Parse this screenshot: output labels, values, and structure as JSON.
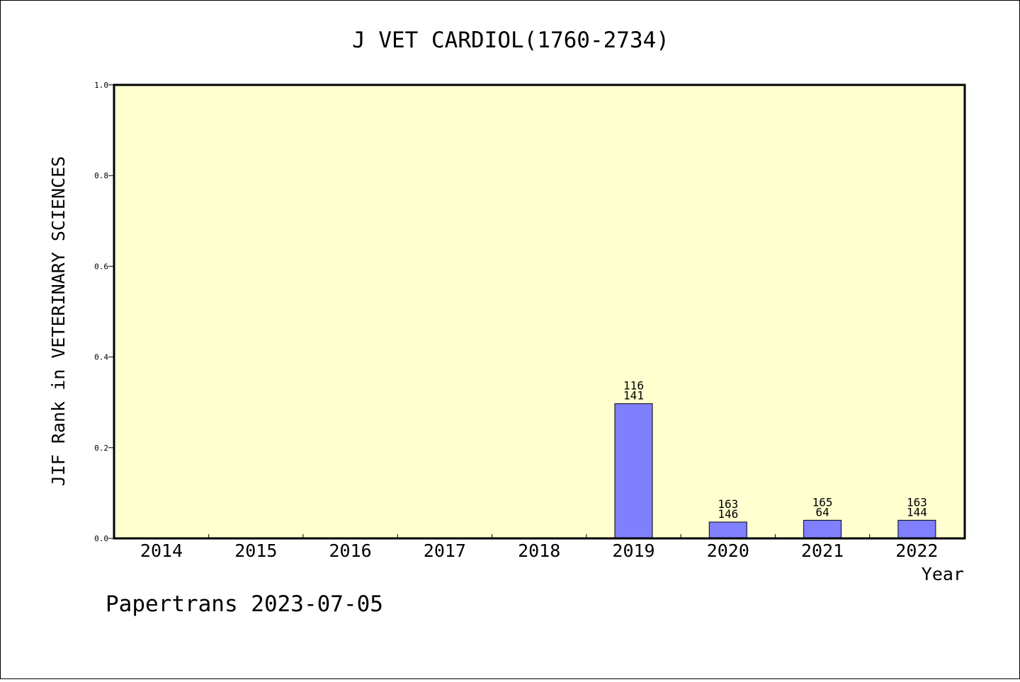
{
  "chart_data": {
    "type": "bar",
    "title": "J VET CARDIOL(1760-2734)",
    "xlabel": "Year",
    "ylabel": "JIF Rank in VETERINARY SCIENCES",
    "ylim": [
      0,
      1
    ],
    "yticks": [
      "0.0",
      "0.2",
      "0.4",
      "0.6",
      "0.8",
      "1.0"
    ],
    "categories": [
      "2014",
      "2015",
      "2016",
      "2017",
      "2018",
      "2019",
      "2020",
      "2021",
      "2022"
    ],
    "values": [
      null,
      null,
      null,
      null,
      null,
      0.297,
      0.036,
      0.04,
      0.04
    ],
    "labels": [
      null,
      null,
      null,
      null,
      null,
      [
        "116",
        "141"
      ],
      [
        "163",
        "146"
      ],
      [
        "165",
        "64"
      ],
      [
        "163",
        "144"
      ]
    ],
    "colors": {
      "bar": "#8080ff",
      "plot_background": "#ffffd0",
      "axis": "#000000"
    },
    "grid": false,
    "legend": "none"
  },
  "footer": {
    "watermark": "Papertrans 2023-07-05"
  }
}
